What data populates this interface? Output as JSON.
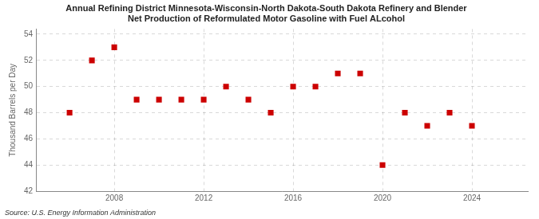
{
  "chart_data": {
    "type": "scatter",
    "title": [
      "Annual Refining District Minnesota-Wisconsin-North Dakota-South Dakota Refinery and Blender",
      "Net Production of Reformulated Motor Gasoline with Fuel ALcohol"
    ],
    "ylabel": "Thousand Barrels per Day",
    "annotations": [
      "Source: U.S. Energy Information Administration"
    ],
    "x": [
      2006,
      2007,
      2008,
      2009,
      2010,
      2011,
      2012,
      2013,
      2014,
      2015,
      2016,
      2017,
      2018,
      2019,
      2020,
      2021,
      2022,
      2023,
      2024
    ],
    "values": [
      48,
      52,
      53,
      49,
      49,
      49,
      49,
      50,
      49,
      48,
      50,
      50,
      51,
      51,
      44,
      48,
      47,
      48,
      47
    ],
    "color": "#cc0000",
    "marker": "square",
    "xlim": [
      2004.5,
      2026.5
    ],
    "xticks": [
      2008,
      2012,
      2016,
      2020,
      2024
    ],
    "ylim": [
      42,
      54.4
    ],
    "yticks": [
      42,
      44,
      46,
      48,
      50,
      52,
      54
    ],
    "grid": true
  }
}
